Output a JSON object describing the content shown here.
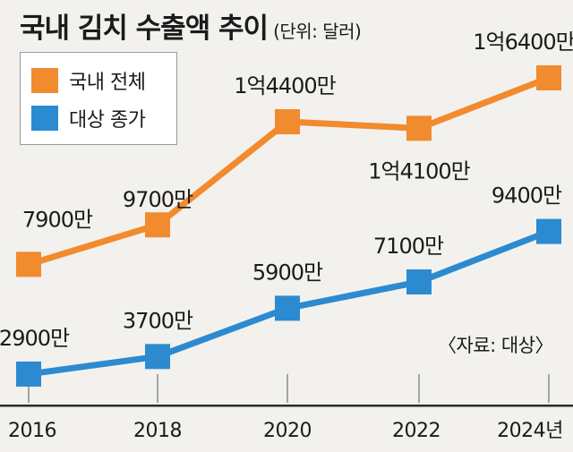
{
  "title": "국내 김치 수출액 추이",
  "unit_note": "(단위: 달러)",
  "source": "〈자료: 대상〉",
  "colors": {
    "background": "#f2f1ed",
    "orange": "#f28a2e",
    "blue": "#2c8ad0",
    "bottom_bar": "#2b2b2b"
  },
  "chart_data": {
    "type": "line",
    "x": [
      "2016",
      "2018",
      "2020",
      "2022",
      "2024년"
    ],
    "series": [
      {
        "name": "국내 전체",
        "color": "#f28a2e",
        "values": [
          79000000,
          97000000,
          144000000,
          141000000,
          164000000
        ],
        "labels": [
          "7900만",
          "9700만",
          "1억4400만",
          "1억4100만",
          "1억6400만"
        ]
      },
      {
        "name": "대상 종가",
        "color": "#2c8ad0",
        "values": [
          29000000,
          37000000,
          59000000,
          71000000,
          94000000
        ],
        "labels": [
          "2900만",
          "3700만",
          "5900만",
          "7100만",
          "9400만"
        ]
      }
    ],
    "ylim": [
      20000000,
      175000000
    ],
    "grid": false,
    "legend": "top-left"
  }
}
